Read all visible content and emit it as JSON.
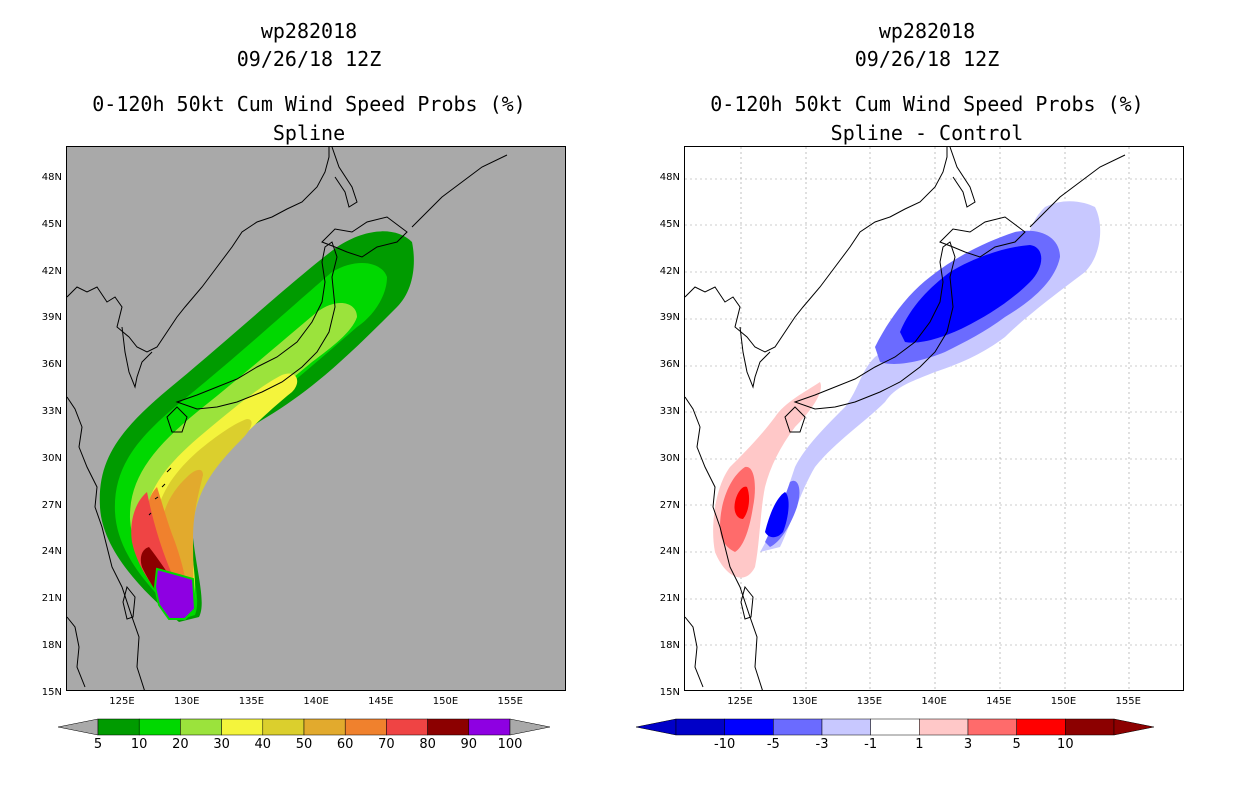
{
  "left": {
    "title1": "wp282018",
    "title2": "09/26/18 12Z",
    "title3": "0-120h 50kt Cum Wind Speed Probs (%)",
    "title4": "Spline",
    "background_color": "#a9a9a9",
    "lat_labels": [
      "48N",
      "45N",
      "42N",
      "39N",
      "36N",
      "33N",
      "30N",
      "27N",
      "24N",
      "21N",
      "18N",
      "15N"
    ],
    "lon_labels": [
      "125E",
      "130E",
      "135E",
      "140E",
      "145E",
      "150E",
      "155E"
    ],
    "colorbar": {
      "colors": [
        "#009b00",
        "#00d800",
        "#9be33c",
        "#f4f43c",
        "#dbcf2d",
        "#e2aa2d",
        "#f0812d",
        "#ef4444",
        "#8c0000",
        "#8e00e2"
      ],
      "labels": [
        "5",
        "10",
        "20",
        "30",
        "40",
        "50",
        "60",
        "70",
        "80",
        "90",
        "100"
      ]
    }
  },
  "right": {
    "title1": "wp282018",
    "title2": "09/26/18 12Z",
    "title3": "0-120h 50kt Cum Wind Speed Probs (%)",
    "title4": "Spline - Control",
    "background_color": "#ffffff",
    "lat_labels": [
      "48N",
      "45N",
      "42N",
      "39N",
      "36N",
      "33N",
      "30N",
      "27N",
      "24N",
      "21N",
      "18N",
      "15N"
    ],
    "lon_labels": [
      "125E",
      "130E",
      "135E",
      "140E",
      "145E",
      "150E",
      "155E"
    ],
    "colorbar": {
      "colors": [
        "#0000c8",
        "#0000ff",
        "#6b6bff",
        "#c8c8ff",
        "#ffffff",
        "#ffc8c8",
        "#ff6b6b",
        "#ff0000",
        "#8c0000"
      ],
      "labels": [
        "-10",
        "-5",
        "-3",
        "-1",
        "1",
        "3",
        "5",
        "10"
      ]
    }
  }
}
